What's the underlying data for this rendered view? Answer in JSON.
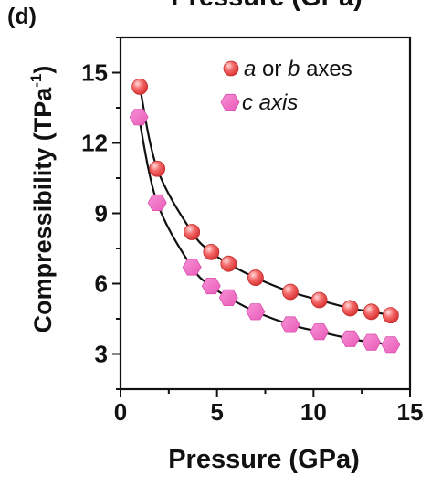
{
  "panel_label": "(d)",
  "cut_title": "Pressure (GPa)",
  "chart_data": {
    "type": "scatter",
    "title": "",
    "xlabel": "Pressure (GPa)",
    "ylabel": "Compressibility (TPa",
    "ylabel_sup": "-1",
    "ylabel_end": ")",
    "xlim": [
      0,
      15
    ],
    "ylim": [
      1.5,
      16.5
    ],
    "xticks": [
      0,
      5,
      10,
      15
    ],
    "yticks": [
      3,
      6,
      9,
      12,
      15
    ],
    "grid": false,
    "legend_position": "top-right",
    "series": [
      {
        "name_parts": [
          "a",
          " or ",
          "b",
          " axes"
        ],
        "marker": "sphere",
        "color": "#f05c5c",
        "x": [
          1.0,
          1.9,
          3.7,
          4.7,
          5.6,
          7.0,
          8.8,
          10.3,
          11.9,
          13.0,
          14.0
        ],
        "y": [
          14.4,
          10.9,
          8.2,
          7.35,
          6.85,
          6.25,
          5.65,
          5.3,
          4.95,
          4.8,
          4.65
        ]
      },
      {
        "name_parts": [
          "c axis"
        ],
        "marker": "hexagon",
        "color": "#f06bc2",
        "x": [
          0.95,
          1.9,
          3.7,
          4.7,
          5.6,
          7.0,
          8.8,
          10.3,
          11.9,
          13.0,
          14.0
        ],
        "y": [
          13.1,
          9.45,
          6.7,
          5.9,
          5.4,
          4.8,
          4.25,
          3.95,
          3.65,
          3.5,
          3.4
        ]
      }
    ]
  }
}
